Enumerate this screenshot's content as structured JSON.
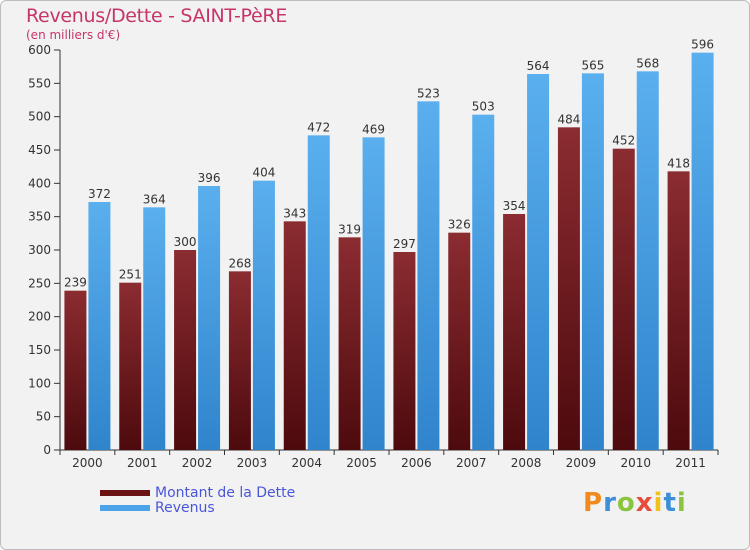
{
  "chart_data": {
    "type": "bar",
    "title": "Revenus/Dette - SAINT-PèRE",
    "subtitle": "(en milliers d'€)",
    "categories": [
      "2000",
      "2001",
      "2002",
      "2003",
      "2004",
      "2005",
      "2006",
      "2007",
      "2008",
      "2009",
      "2010",
      "2011"
    ],
    "series": [
      {
        "name": "Montant de la Dette",
        "color": "#7a1f24",
        "values": [
          239,
          251,
          300,
          268,
          343,
          319,
          297,
          326,
          354,
          484,
          452,
          418
        ]
      },
      {
        "name": "Revenus",
        "color": "#4da3e8",
        "values": [
          372,
          364,
          396,
          404,
          472,
          469,
          523,
          503,
          564,
          565,
          568,
          596
        ]
      }
    ],
    "yticks": [
      0,
      50,
      100,
      150,
      200,
      250,
      300,
      350,
      400,
      450,
      500,
      550,
      600
    ],
    "ylim": [
      0,
      600
    ],
    "xlabel": "",
    "ylabel": "",
    "grid": false,
    "legend_position": "bottom-left"
  },
  "logo": {
    "letters": [
      "P",
      "r",
      "o",
      "x",
      "i",
      "t",
      "i"
    ],
    "colors": [
      "#f08a1c",
      "#3c8fd8",
      "#8bc53f",
      "#e84b3a",
      "#f2c21b",
      "#3c8fd8",
      "#8bc53f"
    ]
  }
}
